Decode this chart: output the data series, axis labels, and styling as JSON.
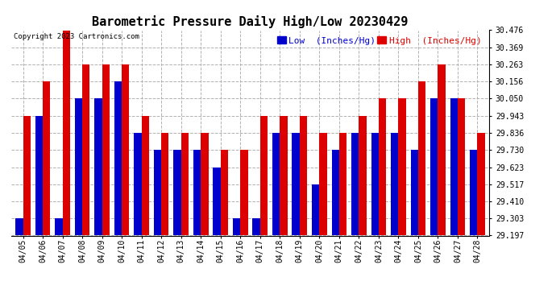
{
  "title": "Barometric Pressure Daily High/Low 20230429",
  "copyright": "Copyright 2023 Cartronics.com",
  "legend_low": "Low  (Inches/Hg)",
  "legend_high": "High  (Inches/Hg)",
  "dates": [
    "04/05",
    "04/06",
    "04/07",
    "04/08",
    "04/09",
    "04/10",
    "04/11",
    "04/12",
    "04/13",
    "04/14",
    "04/15",
    "04/16",
    "04/17",
    "04/18",
    "04/19",
    "04/20",
    "04/21",
    "04/22",
    "04/23",
    "04/24",
    "04/25",
    "04/26",
    "04/27",
    "04/28"
  ],
  "low_values": [
    29.303,
    29.943,
    29.303,
    30.05,
    30.05,
    30.156,
    29.836,
    29.73,
    29.73,
    29.73,
    29.623,
    29.303,
    29.303,
    29.836,
    29.836,
    29.517,
    29.73,
    29.836,
    29.836,
    29.836,
    29.73,
    30.05,
    30.05,
    29.73
  ],
  "high_values": [
    29.943,
    30.156,
    30.476,
    30.263,
    30.263,
    30.263,
    29.943,
    29.836,
    29.836,
    29.836,
    29.73,
    29.73,
    29.943,
    29.943,
    29.943,
    29.836,
    29.836,
    29.943,
    30.05,
    30.05,
    30.156,
    30.263,
    30.05,
    29.836
  ],
  "ylim_low": 29.197,
  "ylim_high": 30.476,
  "yticks": [
    29.197,
    29.303,
    29.41,
    29.517,
    29.623,
    29.73,
    29.836,
    29.943,
    30.05,
    30.156,
    30.263,
    30.369,
    30.476
  ],
  "bar_width": 0.38,
  "low_color": "#0000cc",
  "high_color": "#dd0000",
  "bg_color": "#ffffff",
  "grid_color": "#aaaaaa",
  "title_fontsize": 11,
  "tick_fontsize": 7,
  "legend_fontsize": 8,
  "fig_width": 6.9,
  "fig_height": 3.75,
  "dpi": 100
}
